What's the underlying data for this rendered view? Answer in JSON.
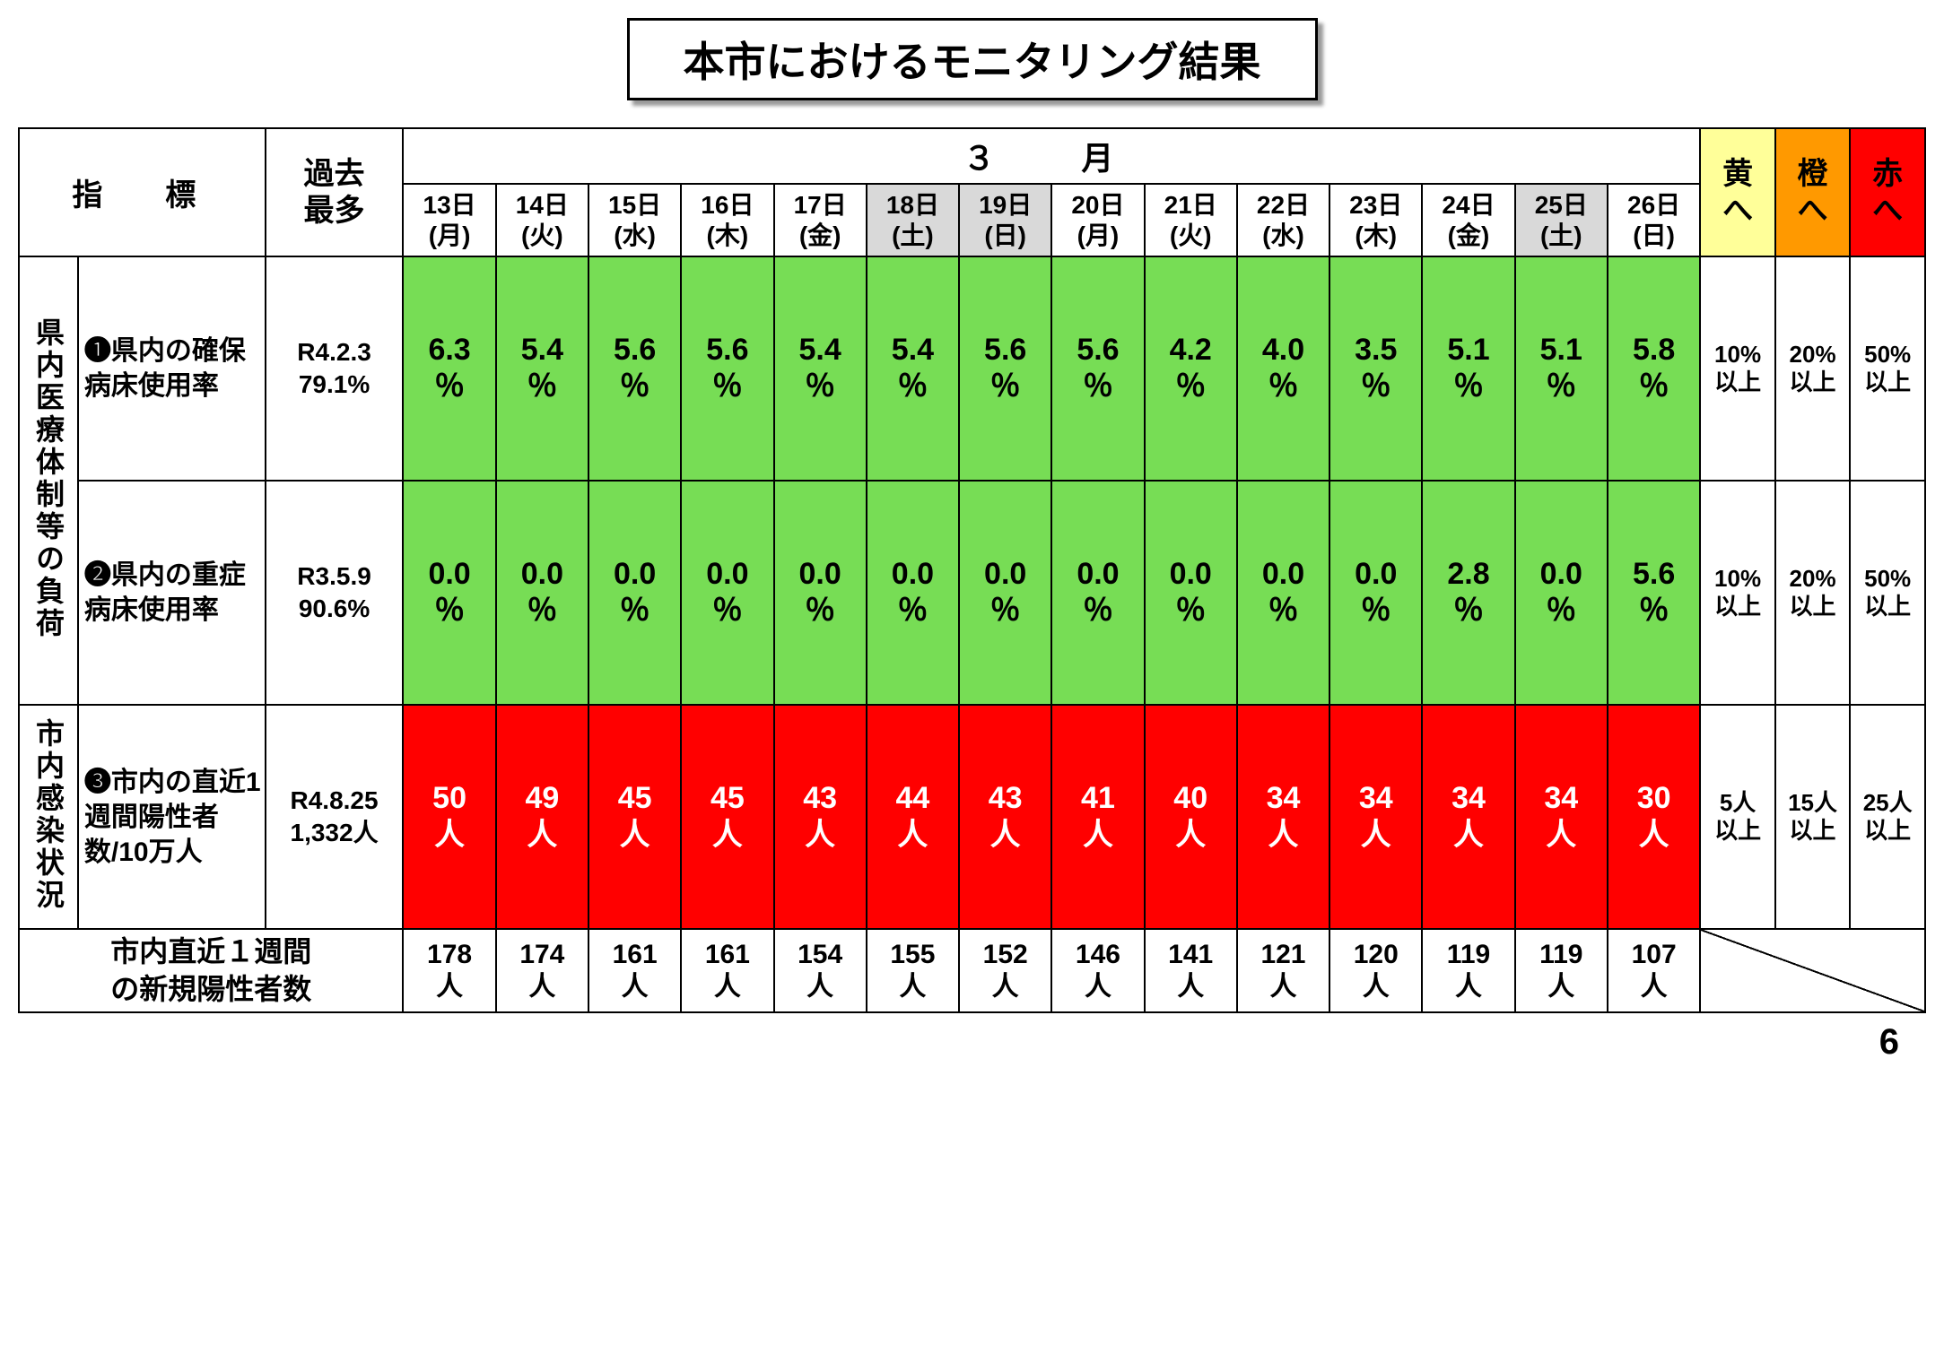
{
  "title": "本市におけるモニタリング結果",
  "page_number": "6",
  "headers": {
    "indicator": "指　標",
    "past_max": "過去最多",
    "month": "３　月",
    "yellow": "黄へ",
    "orange": "橙へ",
    "red": "赤へ"
  },
  "colors": {
    "green": "#77dd55",
    "red": "#ff0000",
    "yellow_hdr": "#ffff99",
    "orange_hdr": "#ff9900",
    "red_hdr": "#ff0000",
    "weekend_bg": "#d9d9d9"
  },
  "days": [
    {
      "d": "13日",
      "w": "(月)",
      "weekend": false
    },
    {
      "d": "14日",
      "w": "(火)",
      "weekend": false
    },
    {
      "d": "15日",
      "w": "(水)",
      "weekend": false
    },
    {
      "d": "16日",
      "w": "(木)",
      "weekend": false
    },
    {
      "d": "17日",
      "w": "(金)",
      "weekend": false
    },
    {
      "d": "18日",
      "w": "(土)",
      "weekend": true
    },
    {
      "d": "19日",
      "w": "(日)",
      "weekend": true
    },
    {
      "d": "20日",
      "w": "(月)",
      "weekend": false
    },
    {
      "d": "21日",
      "w": "(火)",
      "weekend": false
    },
    {
      "d": "22日",
      "w": "(水)",
      "weekend": false
    },
    {
      "d": "23日",
      "w": "(木)",
      "weekend": false
    },
    {
      "d": "24日",
      "w": "(金)",
      "weekend": false
    },
    {
      "d": "25日",
      "w": "(土)",
      "weekend": true
    },
    {
      "d": "26日",
      "w": "(日)",
      "weekend": false
    }
  ],
  "categories": [
    {
      "name": "県内医療体制等の負荷",
      "rowspan": 2
    },
    {
      "name": "市内感染状況",
      "rowspan": 1
    }
  ],
  "rows": [
    {
      "label": "❶県内の確保病床使用率",
      "past": "R4.2.3\n79.1%",
      "unit": "％",
      "color": "green",
      "vals": [
        "6.3",
        "5.4",
        "5.6",
        "5.6",
        "5.4",
        "5.4",
        "5.6",
        "5.6",
        "4.2",
        "4.0",
        "3.5",
        "5.1",
        "5.1",
        "5.8"
      ],
      "th": [
        "10%以上",
        "20%以上",
        "50%以上"
      ]
    },
    {
      "label": "❷県内の重症病床使用率",
      "past": "R3.5.9\n90.6%",
      "unit": "％",
      "color": "green",
      "vals": [
        "0.0",
        "0.0",
        "0.0",
        "0.0",
        "0.0",
        "0.0",
        "0.0",
        "0.0",
        "0.0",
        "0.0",
        "0.0",
        "2.8",
        "0.0",
        "5.6"
      ],
      "th": [
        "10%以上",
        "20%以上",
        "50%以上"
      ]
    },
    {
      "label": "❸市内の直近1週間陽性者数/10万人",
      "past": "R4.8.25\n1,332人",
      "unit": "人",
      "color": "red",
      "vals": [
        "50",
        "49",
        "45",
        "45",
        "43",
        "44",
        "43",
        "41",
        "40",
        "34",
        "34",
        "34",
        "34",
        "30"
      ],
      "th": [
        "5人以上",
        "15人以上",
        "25人以上"
      ]
    }
  ],
  "bottom": {
    "label": "市内直近１週間の新規陽性者数",
    "unit": "人",
    "vals": [
      "178",
      "174",
      "161",
      "161",
      "154",
      "155",
      "152",
      "146",
      "141",
      "121",
      "120",
      "119",
      "119",
      "107"
    ]
  }
}
